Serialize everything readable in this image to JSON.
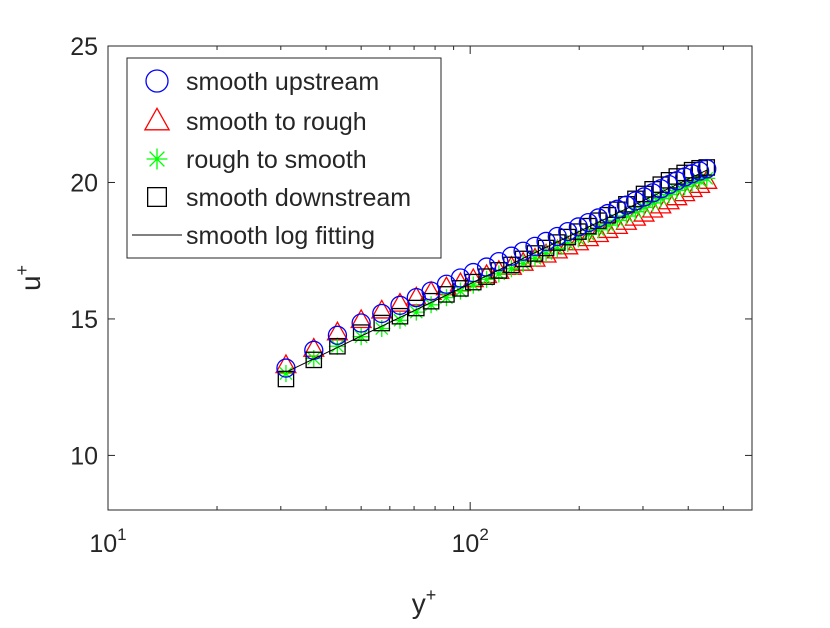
{
  "chart_data": {
    "type": "scatter",
    "title": "",
    "xlabel": "y",
    "xlabel_sup": "+",
    "ylabel": "u",
    "ylabel_sup": "+",
    "xscale": "log",
    "xlim": [
      10,
      600
    ],
    "ylim": [
      8,
      25
    ],
    "xticks": [
      {
        "value": 10,
        "base": "10",
        "exp": "1"
      },
      {
        "value": 100,
        "base": "10",
        "exp": "2"
      }
    ],
    "yticks": [
      10,
      15,
      20,
      25
    ],
    "legend_position": "top-left",
    "x": [
      31,
      37,
      43,
      50,
      57,
      64,
      71,
      78,
      86,
      94,
      102,
      111,
      120,
      130,
      140,
      151,
      162,
      174,
      186,
      199,
      212,
      226,
      240,
      255,
      270,
      286,
      302,
      319,
      336,
      354,
      372,
      391,
      410,
      430,
      450
    ],
    "series": [
      {
        "name": "smooth upstream",
        "marker": "circle",
        "color": "#0000ff",
        "values": [
          13.2,
          13.85,
          14.4,
          14.85,
          15.2,
          15.5,
          15.78,
          16.02,
          16.27,
          16.5,
          16.7,
          16.9,
          17.1,
          17.3,
          17.48,
          17.66,
          17.84,
          18.02,
          18.2,
          18.37,
          18.53,
          18.7,
          18.86,
          19.02,
          19.17,
          19.32,
          19.47,
          19.62,
          19.77,
          19.92,
          20.06,
          20.2,
          20.32,
          20.42,
          20.5
        ]
      },
      {
        "name": "smooth to rough",
        "marker": "triangle",
        "color": "#ff0000",
        "values": [
          13.3,
          13.9,
          14.5,
          14.95,
          15.3,
          15.55,
          15.78,
          15.98,
          16.15,
          16.3,
          16.45,
          16.6,
          16.75,
          16.9,
          17.05,
          17.2,
          17.35,
          17.5,
          17.65,
          17.8,
          17.95,
          18.1,
          18.25,
          18.4,
          18.55,
          18.7,
          18.85,
          19.0,
          19.15,
          19.3,
          19.45,
          19.6,
          19.75,
          19.9,
          20.05
        ]
      },
      {
        "name": "rough to smooth",
        "marker": "asterisk",
        "color": "#00ff00",
        "values": [
          13.0,
          13.55,
          14.0,
          14.35,
          14.65,
          14.95,
          15.25,
          15.52,
          15.78,
          16.02,
          16.24,
          16.45,
          16.65,
          16.84,
          17.03,
          17.22,
          17.4,
          17.58,
          17.76,
          17.93,
          18.1,
          18.27,
          18.44,
          18.61,
          18.77,
          18.93,
          19.09,
          19.25,
          19.41,
          19.56,
          19.71,
          19.85,
          19.98,
          20.08,
          20.15
        ]
      },
      {
        "name": "smooth downstream",
        "marker": "square",
        "color": "#000000",
        "values": [
          12.8,
          13.5,
          14.0,
          14.5,
          14.85,
          15.1,
          15.4,
          15.65,
          15.9,
          16.12,
          16.35,
          16.55,
          16.78,
          16.98,
          17.2,
          17.4,
          17.6,
          17.8,
          18.0,
          18.2,
          18.4,
          18.6,
          18.8,
          19.0,
          19.2,
          19.4,
          19.58,
          19.75,
          19.92,
          20.08,
          20.22,
          20.35,
          20.45,
          20.52,
          20.55
        ]
      },
      {
        "name": "smooth log fitting",
        "marker": "line",
        "color": "#000000",
        "x": [
          31,
          450
        ],
        "values": [
          13.05,
          20.45
        ]
      }
    ]
  }
}
